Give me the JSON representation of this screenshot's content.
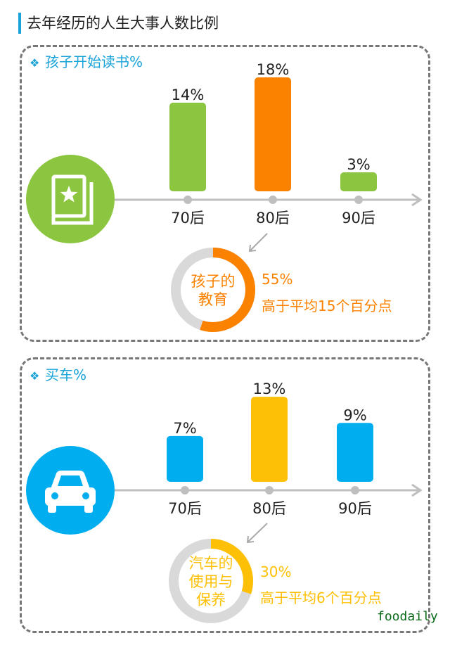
{
  "page_title": "去年经历的人生大事人数比例",
  "colors": {
    "accent": "#1aa3d9",
    "green": "#8cc540",
    "orange": "#fb8200",
    "yellow": "#fec006",
    "blue": "#00aeef",
    "axis": "#bfbfbf",
    "ring_track": "#d9d9d9"
  },
  "chart_data": [
    {
      "type": "bar",
      "title": "孩子开始读书%",
      "icon": "book-icon",
      "categories": [
        "70后",
        "80后",
        "90后"
      ],
      "values": [
        14,
        18,
        3
      ],
      "value_labels": [
        "14%",
        "18%",
        "3%"
      ],
      "bar_colors": [
        "#8cc540",
        "#fb8200",
        "#8cc540"
      ],
      "callout": {
        "ring_label": "孩子的教育",
        "ring_lines": [
          "孩子的",
          "教育"
        ],
        "ring_percent": 55,
        "value_text": "55%",
        "note": "高于平均15个百分点",
        "color": "#fb8200"
      }
    },
    {
      "type": "bar",
      "title": "买车%",
      "icon": "car-icon",
      "categories": [
        "70后",
        "80后",
        "90后"
      ],
      "values": [
        7,
        13,
        9
      ],
      "value_labels": [
        "7%",
        "13%",
        "9%"
      ],
      "bar_colors": [
        "#00aeef",
        "#fec006",
        "#00aeef"
      ],
      "callout": {
        "ring_label": "汽车的使用与保养",
        "ring_lines": [
          "汽车的",
          "使用与",
          "保养"
        ],
        "ring_percent": 30,
        "value_text": "30%",
        "note": "高于平均6个百分点",
        "color": "#fec006"
      }
    }
  ],
  "watermark": "foodaily"
}
